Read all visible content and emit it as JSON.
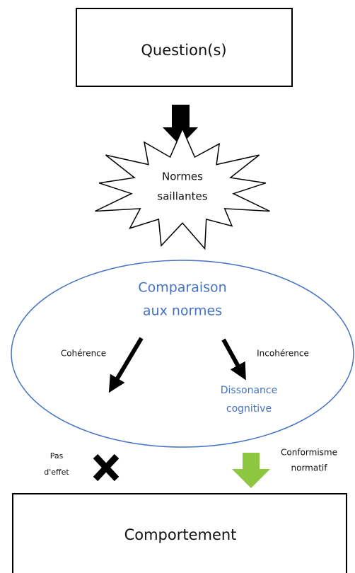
{
  "question_box": {
    "label": "Question(s)"
  },
  "salient_norms": {
    "lines": [
      "Normes",
      "saillantes"
    ]
  },
  "comparison": {
    "lines": [
      "Comparaison",
      "aux normes"
    ]
  },
  "coherence": {
    "label": "Cohérence"
  },
  "incoherence": {
    "label": "Incohérence"
  },
  "dissonance": {
    "lines": [
      "Dissonance",
      "cognitive"
    ]
  },
  "no_effect": {
    "lines": [
      "Pas",
      "d'effet"
    ]
  },
  "conformism": {
    "lines": [
      "Conformisme",
      "normatif"
    ]
  },
  "behavior_box": {
    "label": "Comportement"
  }
}
